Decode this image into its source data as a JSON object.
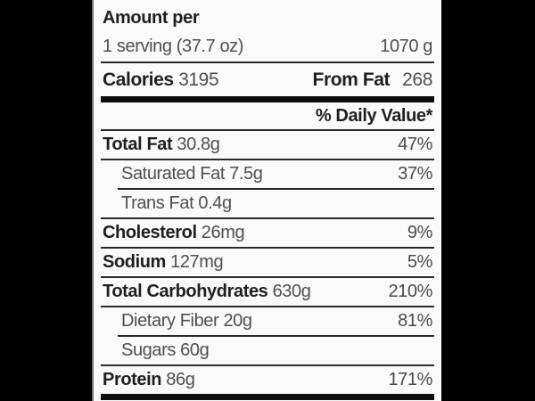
{
  "header": {
    "amount_per_label": "Amount per"
  },
  "serving": {
    "text": "1 serving (37.7 oz)",
    "weight": "1070 g"
  },
  "calories": {
    "label": "Calories",
    "value": "3195",
    "from_fat_label": "From Fat",
    "from_fat_value": "268"
  },
  "daily_value_header": "% Daily Value*",
  "nutrients": [
    {
      "name": "Total Fat",
      "amount": "30.8g",
      "percent": "47%"
    },
    {
      "name": "Saturated Fat",
      "amount": "7.5g",
      "percent": "37%"
    },
    {
      "name": "Trans Fat",
      "amount": "0.4g",
      "percent": ""
    },
    {
      "name": "Cholesterol",
      "amount": "26mg",
      "percent": "9%"
    },
    {
      "name": "Sodium",
      "amount": "127mg",
      "percent": "5%"
    },
    {
      "name": "Total Carbohydrates",
      "amount": "630g",
      "percent": "210%"
    },
    {
      "name": "Dietary Fiber",
      "amount": "20g",
      "percent": "81%"
    },
    {
      "name": "Sugars",
      "amount": "60g",
      "percent": ""
    },
    {
      "name": "Protein",
      "amount": "86g",
      "percent": "171%"
    }
  ],
  "colors": {
    "background": "#000000",
    "panel": "#fafafa",
    "text_primary": "#1f1f1f",
    "text_secondary": "#4f4f4f",
    "divider": "#2b2b2b"
  }
}
